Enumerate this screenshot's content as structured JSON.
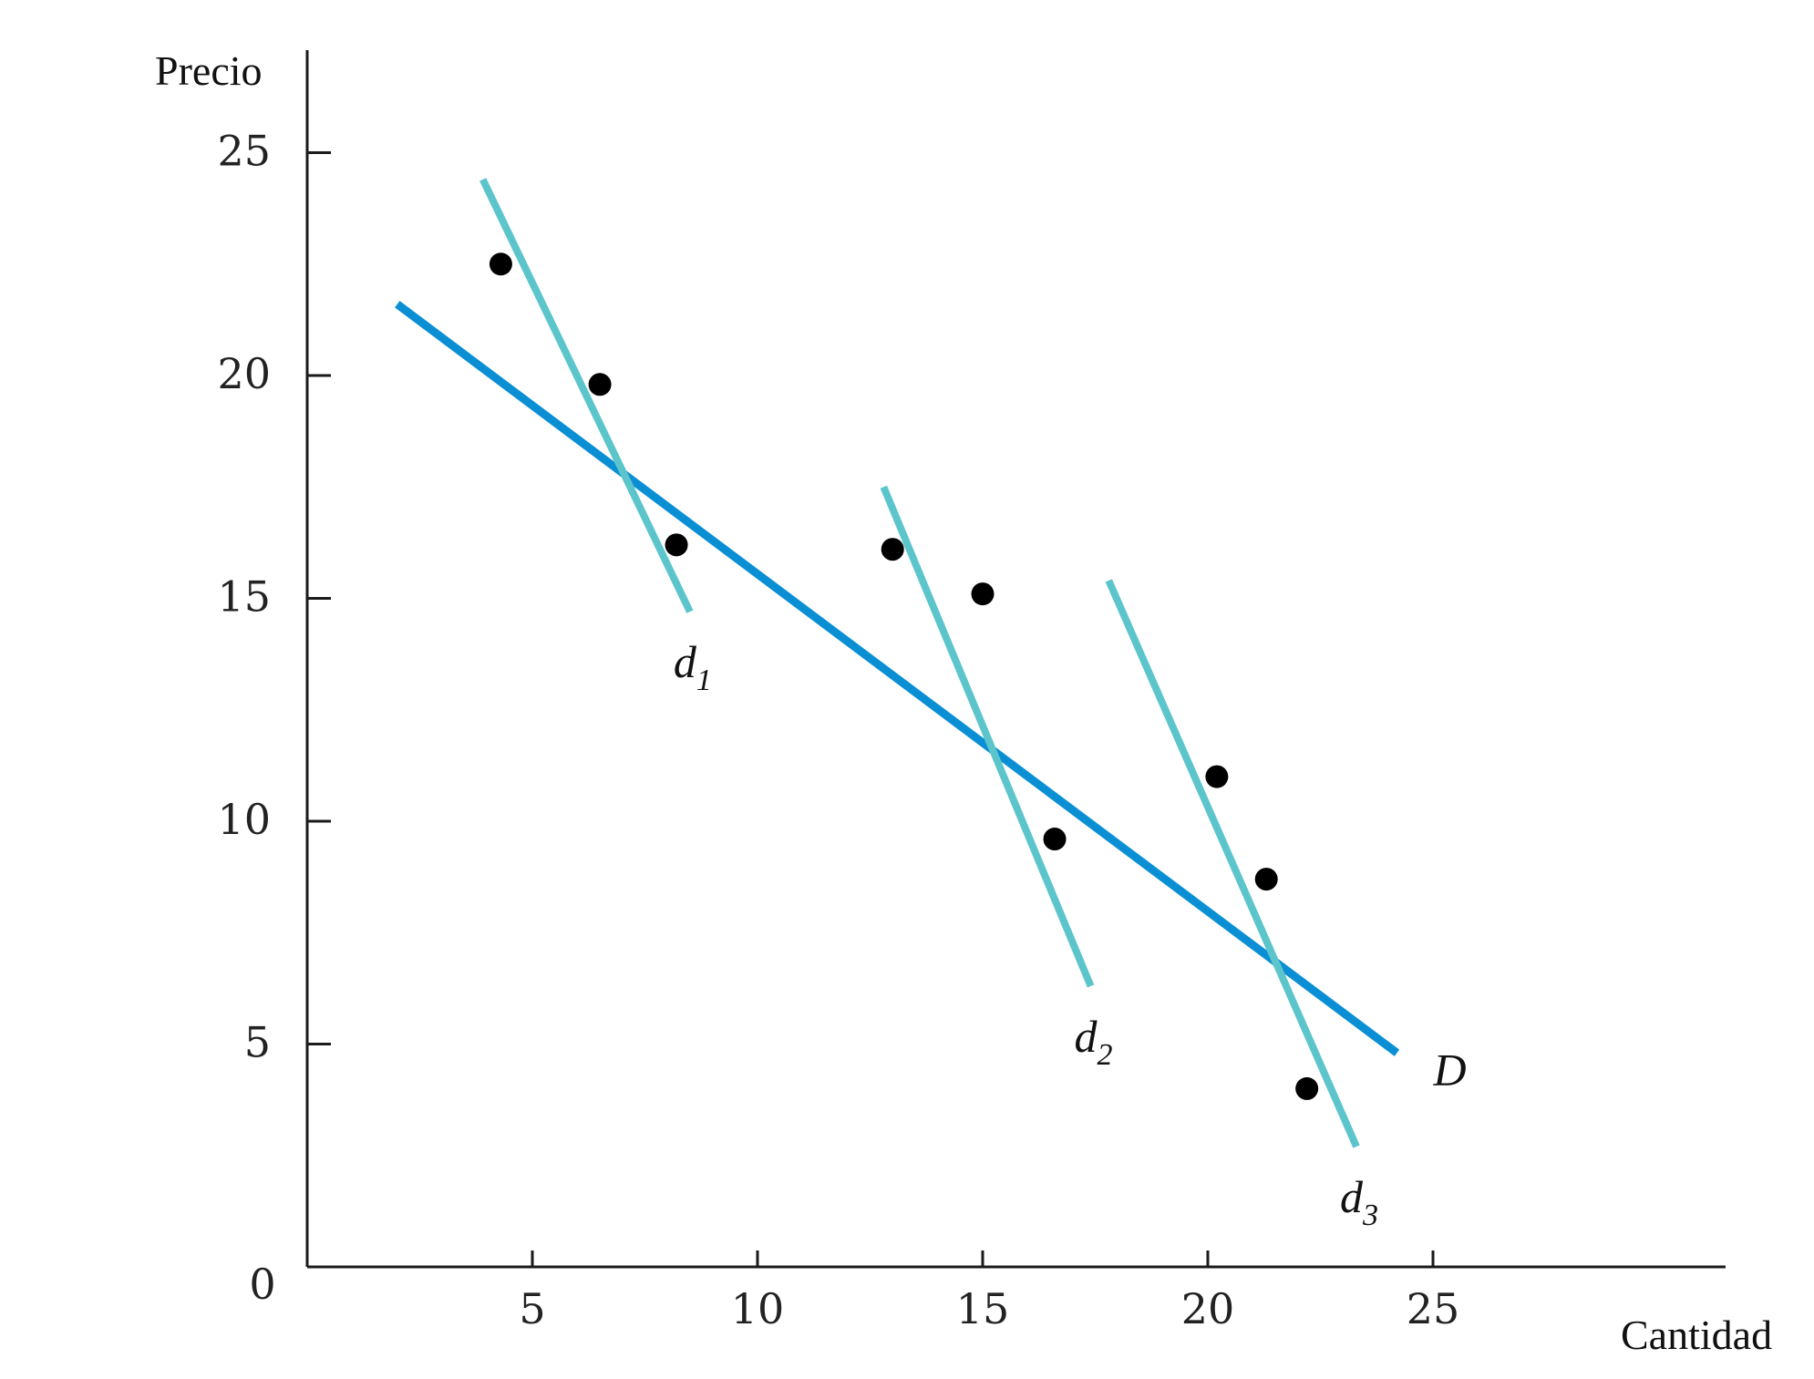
{
  "chart_data": {
    "type": "scatter",
    "title": "",
    "xlabel": "Cantidad",
    "ylabel": "Precio",
    "xlim": [
      0,
      31
    ],
    "ylim": [
      0,
      27.5
    ],
    "x_ticks": [
      5,
      10,
      15,
      20,
      25
    ],
    "y_ticks": [
      5,
      10,
      15,
      20,
      25
    ],
    "origin_label": "0",
    "grid": false,
    "colors": {
      "market_demand": "#0a8fd4",
      "individual_demand": "#5cc5cc",
      "points": "#000000",
      "axes": "#1a1a1a"
    },
    "points": [
      {
        "x": 4.3,
        "y": 22.5
      },
      {
        "x": 6.5,
        "y": 19.8
      },
      {
        "x": 8.2,
        "y": 16.2
      },
      {
        "x": 13.0,
        "y": 16.1
      },
      {
        "x": 15.0,
        "y": 15.1
      },
      {
        "x": 16.6,
        "y": 9.6
      },
      {
        "x": 20.2,
        "y": 11.0
      },
      {
        "x": 21.3,
        "y": 8.7
      },
      {
        "x": 22.2,
        "y": 4.0
      }
    ],
    "lines": [
      {
        "name": "D",
        "label": "D",
        "subscript": "",
        "kind": "market",
        "x": [
          2.0,
          24.2
        ],
        "y": [
          21.6,
          4.8
        ]
      },
      {
        "name": "d1",
        "label": "d",
        "subscript": "1",
        "kind": "individual",
        "x": [
          3.9,
          8.5
        ],
        "y": [
          24.4,
          14.7
        ]
      },
      {
        "name": "d2",
        "label": "d",
        "subscript": "2",
        "kind": "individual",
        "x": [
          12.8,
          17.4
        ],
        "y": [
          17.5,
          6.3
        ]
      },
      {
        "name": "d3",
        "label": "d",
        "subscript": "3",
        "kind": "individual",
        "x": [
          17.8,
          23.3
        ],
        "y": [
          15.4,
          2.7
        ]
      }
    ]
  }
}
